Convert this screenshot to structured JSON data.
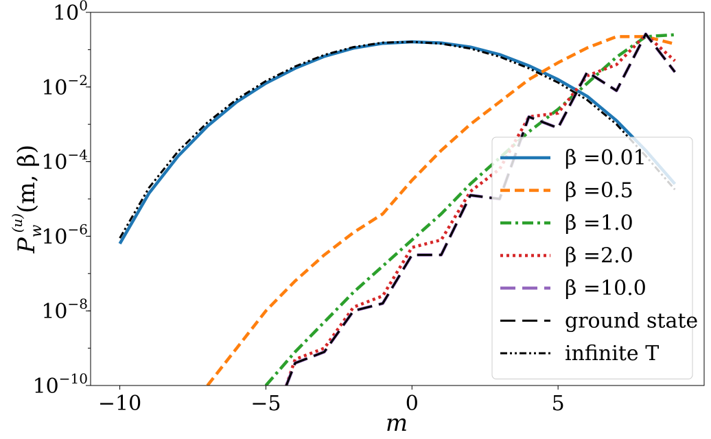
{
  "chart_data": {
    "type": "line",
    "xlabel": "m",
    "ylabel_main": "P",
    "ylabel_sub": "w",
    "ylabel_sup": "(u)",
    "ylabel_args": "(m, β)",
    "x_ticks": [
      -10,
      -5,
      0,
      5
    ],
    "x_tick_labels": [
      "−10",
      "−5",
      "0",
      "5"
    ],
    "xlim": [
      -11,
      10
    ],
    "y_scale": "log",
    "ylim_exponent": [
      -10,
      0
    ],
    "y_ticks": [
      {
        "base": "10",
        "exp": "0",
        "exponent": 0
      },
      {
        "base": "10",
        "exp": "−2",
        "exponent": -2
      },
      {
        "base": "10",
        "exp": "−4",
        "exponent": -4
      },
      {
        "base": "10",
        "exp": "−6",
        "exponent": -6
      },
      {
        "base": "10",
        "exp": "−8",
        "exponent": -8
      },
      {
        "base": "10",
        "exp": "−10",
        "exponent": -10
      }
    ],
    "legend_position": "lower-right",
    "series": [
      {
        "name": "β =0.01",
        "color": "#1f77b4",
        "dash": "solid",
        "x": [
          -10,
          -9,
          -8,
          -7,
          -6,
          -5,
          -4,
          -3,
          -2,
          -1,
          0,
          1,
          2,
          3,
          4,
          5,
          6,
          7,
          8,
          9
        ],
        "log10_y": [
          -6.2,
          -4.85,
          -3.85,
          -3.05,
          -2.4,
          -1.9,
          -1.5,
          -1.18,
          -0.96,
          -0.83,
          -0.79,
          -0.82,
          -0.93,
          -1.13,
          -1.43,
          -1.8,
          -2.25,
          -2.9,
          -3.7,
          -4.6
        ]
      },
      {
        "name": "β =0.5",
        "color": "#ff7f0e",
        "dash": "dashed",
        "x": [
          -7,
          -6,
          -5,
          -4,
          -3,
          -2,
          -1,
          0,
          1,
          2,
          3,
          4,
          5,
          6,
          7,
          8,
          9
        ],
        "log10_y": [
          -10.0,
          -9.0,
          -8.0,
          -7.2,
          -6.5,
          -5.9,
          -5.4,
          -4.5,
          -3.7,
          -3.0,
          -2.4,
          -1.8,
          -1.35,
          -0.95,
          -0.65,
          -0.65,
          -0.85
        ]
      },
      {
        "name": "β =1.0",
        "color": "#2ca02c",
        "dash": "dashdot",
        "x": [
          -5,
          -4,
          -3,
          -2,
          -1,
          0,
          1,
          2,
          3,
          4,
          5,
          6,
          7,
          8,
          9
        ],
        "log10_y": [
          -10.0,
          -9.1,
          -8.3,
          -7.5,
          -6.8,
          -6.1,
          -5.4,
          -4.6,
          -3.9,
          -3.2,
          -2.6,
          -1.9,
          -1.2,
          -0.65,
          -0.6
        ]
      },
      {
        "name": "β =2.0",
        "color": "#d62728",
        "dash": "dotted",
        "x": [
          -4.3,
          -4,
          -3,
          -2,
          -1,
          0,
          1,
          2,
          3,
          4,
          5,
          6,
          7,
          8,
          9
        ],
        "log10_y": [
          -10.0,
          -9.3,
          -9.0,
          -7.9,
          -7.6,
          -6.3,
          -6.1,
          -4.8,
          -4.2,
          -2.8,
          -2.7,
          -1.7,
          -1.4,
          -0.6,
          -1.3
        ]
      },
      {
        "name": "β =10.0",
        "color": "#9467bd",
        "dash": "longdash",
        "x": [
          -4.3,
          -4,
          -3,
          -2,
          -1,
          0,
          1,
          2,
          3,
          4,
          5,
          6,
          7,
          8,
          9
        ],
        "log10_y": [
          -10.0,
          -9.4,
          -9.1,
          -8.0,
          -7.8,
          -6.5,
          -6.5,
          -4.9,
          -5.0,
          -2.8,
          -3.1,
          -1.6,
          -2.1,
          -0.58,
          -1.6
        ]
      },
      {
        "name": "ground state",
        "color": "#000000",
        "dash": "longdash",
        "x": [
          -4.3,
          -4,
          -3,
          -2,
          -1,
          0,
          1,
          2,
          3,
          4,
          5,
          6,
          7,
          8,
          9
        ],
        "log10_y": [
          -10.0,
          -9.4,
          -9.1,
          -8.0,
          -7.8,
          -6.5,
          -6.5,
          -4.9,
          -5.0,
          -2.8,
          -3.1,
          -1.6,
          -2.1,
          -0.58,
          -1.6
        ]
      },
      {
        "name": "infinite T",
        "color": "#000000",
        "dash": "dashdotdot",
        "x": [
          -10,
          -9,
          -8,
          -7,
          -6,
          -5,
          -4,
          -3,
          -2,
          -1,
          0,
          1,
          2,
          3,
          4,
          5,
          6,
          7,
          8,
          9
        ],
        "log10_y": [
          -6.05,
          -4.7,
          -3.72,
          -2.95,
          -2.33,
          -1.84,
          -1.45,
          -1.14,
          -0.93,
          -0.81,
          -0.79,
          -0.84,
          -0.97,
          -1.19,
          -1.5,
          -1.88,
          -2.35,
          -3.0,
          -3.85,
          -4.75
        ]
      }
    ]
  }
}
